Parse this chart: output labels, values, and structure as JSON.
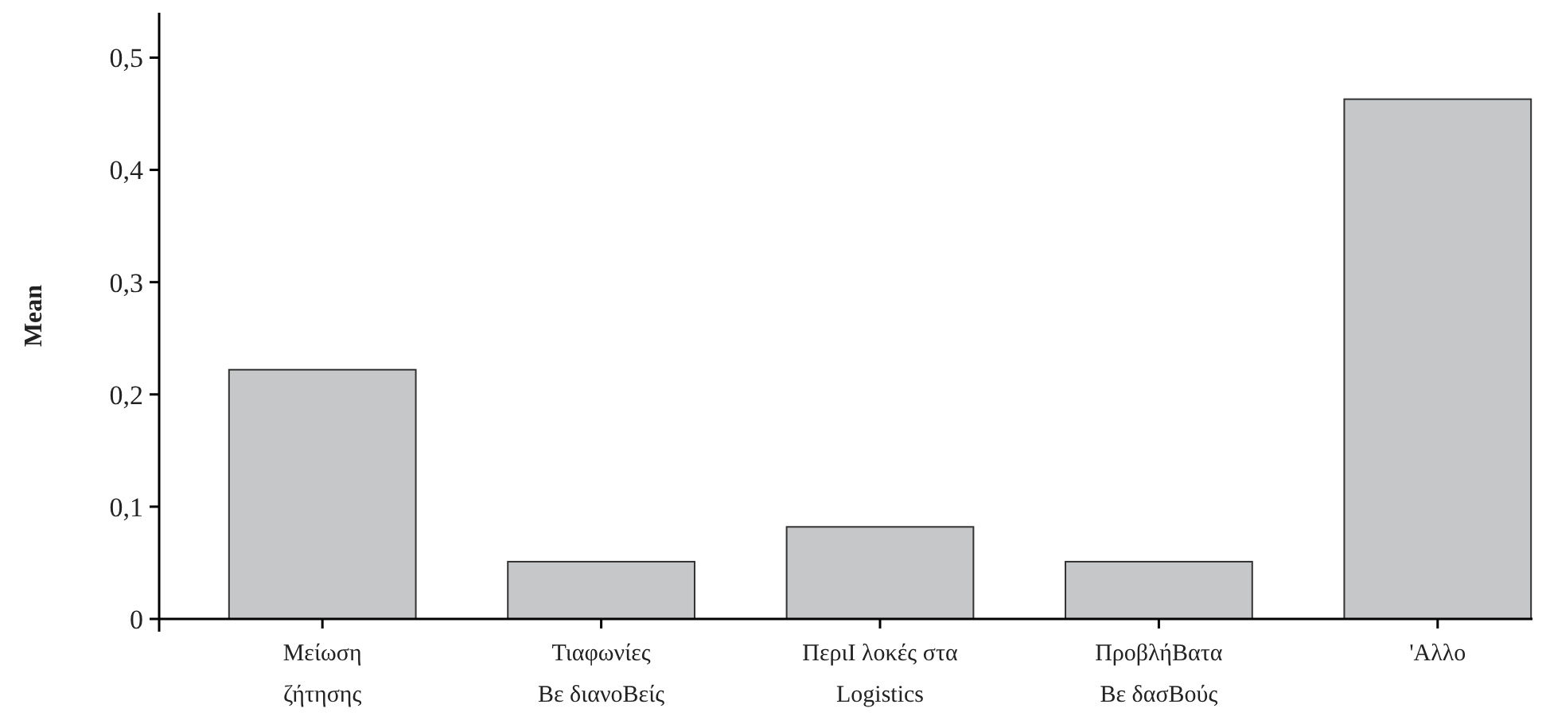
{
  "chart_data": {
    "type": "bar",
    "ylabel": "Mean",
    "categories": [
      "Μείωση\nζήτησης",
      "Τιαφωνίες\nΒε διανοΒείς",
      "ΠεριΙ λοκές στα\nLogistics",
      "ΠροβλήΒατα\nΒε δασΒούς",
      "'Αλλο"
    ],
    "values": [
      0.222,
      0.051,
      0.082,
      0.051,
      0.463
    ],
    "color": "#c6c7c9",
    "ylim": [
      0,
      0.54
    ],
    "yticks": [
      {
        "value": 0,
        "label": "0"
      },
      {
        "value": 0.1,
        "label": "0,1"
      },
      {
        "value": 0.2,
        "label": "0,2"
      },
      {
        "value": 0.3,
        "label": "0,3"
      },
      {
        "value": 0.4,
        "label": "0,4"
      },
      {
        "value": 0.5,
        "label": "0,5"
      }
    ],
    "grid": false
  }
}
